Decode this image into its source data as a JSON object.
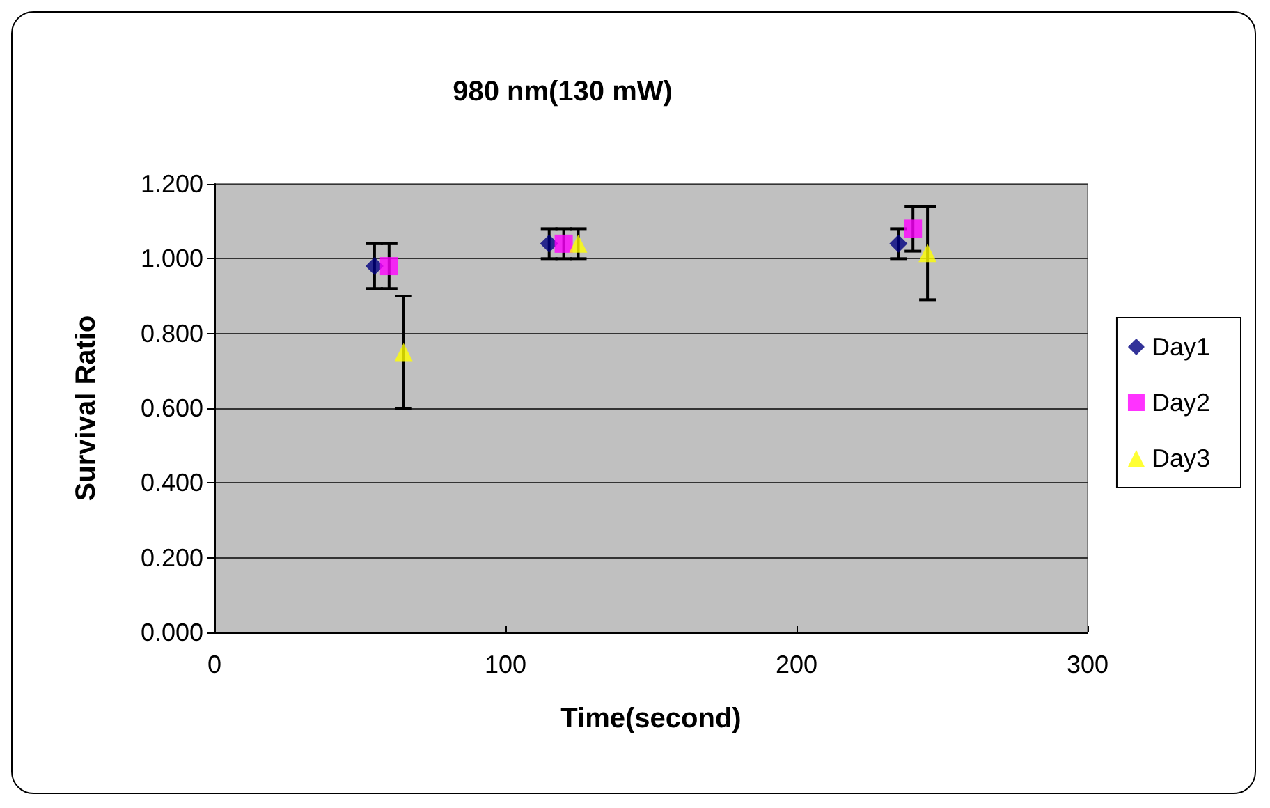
{
  "chart_data": {
    "type": "scatter",
    "title": "980 nm(130 mW)",
    "xlabel": "Time(second)",
    "ylabel": "Survival Ratio",
    "xlim": [
      0,
      300
    ],
    "xticks": [
      0,
      100,
      200,
      300
    ],
    "ylim": [
      0,
      1.2
    ],
    "yticks": [
      {
        "value": 0,
        "label": "0.000"
      },
      {
        "value": 0.2,
        "label": "0.200"
      },
      {
        "value": 0.4,
        "label": "0.400"
      },
      {
        "value": 0.6,
        "label": "0.600"
      },
      {
        "value": 0.8,
        "label": "0.800"
      },
      {
        "value": 1,
        "label": "1.000"
      },
      {
        "value": 1.2,
        "label": "1.200"
      }
    ],
    "grid": "y",
    "legend": "right",
    "series": [
      {
        "name": "Day1",
        "color": "#000080",
        "marker": "diamond",
        "x": [
          55,
          115,
          235
        ],
        "values": [
          0.98,
          1.04,
          1.04
        ],
        "errors": [
          0.06,
          0.04,
          0.04
        ]
      },
      {
        "name": "Day2",
        "color": "#ff00ff",
        "marker": "square",
        "x": [
          60,
          120,
          240
        ],
        "values": [
          0.98,
          1.04,
          1.08
        ],
        "errors": [
          0.06,
          0.04,
          0.06
        ]
      },
      {
        "name": "Day3",
        "color": "#ffff00",
        "marker": "triangle",
        "x": [
          65,
          125,
          245
        ],
        "values": [
          0.75,
          1.04,
          1.015
        ],
        "errors": [
          0.15,
          0.04,
          0.125
        ]
      }
    ]
  }
}
